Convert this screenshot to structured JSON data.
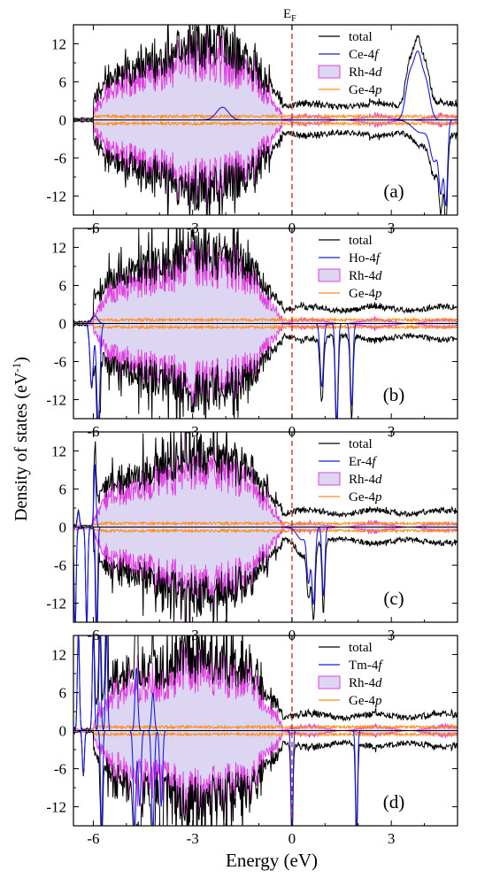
{
  "figure": {
    "ylabel_main": "Density of states (eV",
    "ylabel_sup": "-1",
    "ylabel_close": ")",
    "xlabel": "Energy (eV)",
    "fermi_main": "E",
    "fermi_sub": "F",
    "x_ticks": [
      "-6",
      "-3",
      "0",
      "3"
    ],
    "y_ticks": [
      "12",
      "6",
      "0",
      "-6",
      "-12"
    ]
  },
  "colors": {
    "total": "#000000",
    "f_state": "#1a1adb",
    "rh_line": "#e040e0",
    "rh_fill": "#dcd6f2",
    "ge": "#ff8c1a",
    "fermi": "#d42020"
  },
  "chart_data": [
    {
      "type": "line",
      "panel_label": "(a)",
      "xlim": [
        -6.6,
        5.0
      ],
      "ylim": [
        -15,
        15
      ],
      "x_ticks": [
        -6,
        -3,
        0,
        3
      ],
      "y_ticks": [
        12,
        6,
        0,
        -6,
        -12
      ],
      "fermi_level": 0,
      "legend": [
        "total",
        "Ce-4",
        "Rh-4",
        "Ge-4"
      ],
      "legend_italic": [
        "",
        "f",
        "d",
        "p"
      ],
      "f_peaks": [
        {
          "x": -2.1,
          "h": 2.0,
          "w": 0.18
        },
        {
          "x": 3.55,
          "h": 6.5,
          "w": 0.12
        },
        {
          "x": 3.8,
          "h": 9.5,
          "w": 0.12
        },
        {
          "x": 4.05,
          "h": 5.5,
          "w": 0.12
        }
      ],
      "f_peaks_down": [
        {
          "x": 3.9,
          "h": 2.0,
          "w": 0.25
        },
        {
          "x": 4.3,
          "h": 6.0,
          "w": 0.12
        },
        {
          "x": 4.5,
          "h": 10.0,
          "w": 0.06
        },
        {
          "x": 4.65,
          "h": 13.0,
          "w": 0.05
        }
      ]
    },
    {
      "type": "line",
      "panel_label": "(b)",
      "xlim": [
        -6.6,
        5.0
      ],
      "ylim": [
        -15,
        15
      ],
      "x_ticks": [
        -6,
        -3,
        0,
        3
      ],
      "y_ticks": [
        12,
        6,
        0,
        -6,
        -12
      ],
      "fermi_level": 0,
      "legend": [
        "total",
        "Ho-4",
        "Rh-4",
        "Ge-4"
      ],
      "legend_italic": [
        "",
        "f",
        "d",
        "p"
      ],
      "f_peaks": [
        {
          "x": -5.95,
          "h": 1.2,
          "w": 0.08
        }
      ],
      "f_peaks_down": [
        {
          "x": -6.05,
          "h": 10.0,
          "w": 0.05
        },
        {
          "x": -5.85,
          "h": 16.0,
          "w": 0.05
        },
        {
          "x": 0.9,
          "h": 10.0,
          "w": 0.05
        },
        {
          "x": 1.35,
          "h": 16.0,
          "w": 0.04
        },
        {
          "x": 1.8,
          "h": 13.0,
          "w": 0.04
        }
      ]
    },
    {
      "type": "line",
      "panel_label": "(c)",
      "xlim": [
        -6.6,
        5.0
      ],
      "ylim": [
        -15,
        15
      ],
      "x_ticks": [
        -6,
        -3,
        0,
        3
      ],
      "y_ticks": [
        12,
        6,
        0,
        -6,
        -12
      ],
      "fermi_level": 0,
      "legend": [
        "total",
        "Er-4",
        "Rh-4",
        "Ge-4"
      ],
      "legend_italic": [
        "",
        "f",
        "d",
        "p"
      ],
      "f_peaks": [
        {
          "x": -6.45,
          "h": 2.5,
          "w": 0.03
        },
        {
          "x": -5.95,
          "h": 10.0,
          "w": 0.03
        }
      ],
      "f_peaks_down": [
        {
          "x": -6.55,
          "h": 16.0,
          "w": 0.03
        },
        {
          "x": -6.2,
          "h": 16.0,
          "w": 0.03
        },
        {
          "x": -5.9,
          "h": 16.0,
          "w": 0.03
        },
        {
          "x": 0.3,
          "h": 2.0,
          "w": 0.15
        },
        {
          "x": 0.5,
          "h": 8.0,
          "w": 0.05
        },
        {
          "x": 0.65,
          "h": 12.0,
          "w": 0.05
        },
        {
          "x": 0.95,
          "h": 11.0,
          "w": 0.04
        }
      ]
    },
    {
      "type": "line",
      "panel_label": "(d)",
      "xlim": [
        -6.6,
        5.0
      ],
      "ylim": [
        -15,
        15
      ],
      "x_ticks": [
        -6,
        -3,
        0,
        3
      ],
      "y_ticks": [
        12,
        6,
        0,
        -6,
        -12
      ],
      "fermi_level": 0,
      "legend": [
        "total",
        "Tm-4",
        "Rh-4",
        "Ge-4"
      ],
      "legend_italic": [
        "",
        "f",
        "d",
        "p"
      ],
      "f_peaks": [
        {
          "x": -6.45,
          "h": 16.0,
          "w": 0.03
        },
        {
          "x": -6.0,
          "h": 16.0,
          "w": 0.03
        },
        {
          "x": -5.8,
          "h": 16.0,
          "w": 0.03
        },
        {
          "x": -5.6,
          "h": 16.0,
          "w": 0.03
        },
        {
          "x": -4.7,
          "h": 10.0,
          "w": 0.04
        },
        {
          "x": -4.2,
          "h": 6.0,
          "w": 0.04
        }
      ],
      "f_peaks_down": [
        {
          "x": -6.3,
          "h": 7.0,
          "w": 0.03
        },
        {
          "x": -5.75,
          "h": 16.0,
          "w": 0.03
        },
        {
          "x": -4.75,
          "h": 16.0,
          "w": 0.04
        },
        {
          "x": -4.6,
          "h": 12.0,
          "w": 0.04
        },
        {
          "x": -4.2,
          "h": 16.0,
          "w": 0.04
        },
        {
          "x": -3.95,
          "h": 12.0,
          "w": 0.04
        },
        {
          "x": 0.0,
          "h": 16.0,
          "w": 0.03
        },
        {
          "x": 1.95,
          "h": 16.0,
          "w": 0.03
        }
      ]
    }
  ]
}
